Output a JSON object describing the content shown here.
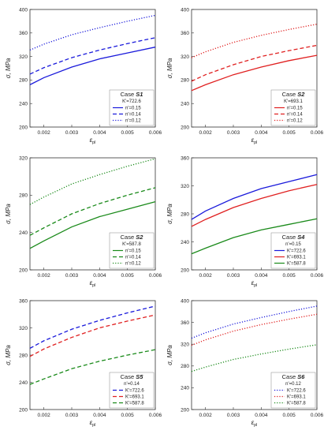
{
  "colors": {
    "blue": "#1a1adb",
    "red": "#e02020",
    "green": "#1a8a1a"
  },
  "chart_data": [
    {
      "type": "line",
      "legend_title": "Case",
      "legend_case": "S1",
      "legend_sub": "K'=722.6",
      "xlabel": "ε",
      "xlabel_sub": "pl",
      "ylabel": "σ, MPa",
      "xlim": [
        0.0015,
        0.006
      ],
      "ylim": [
        200,
        400
      ],
      "xticks": [
        "0.002",
        "0.003",
        "0.004",
        "0.005",
        "0.006"
      ],
      "yticks": [
        "200",
        "240",
        "280",
        "320",
        "360",
        "400"
      ],
      "legend_position": "bottom-right",
      "series": [
        {
          "name": "n'=0.15",
          "color": "#1a1adb",
          "dash": "solid",
          "x": [
            0.0015,
            0.002,
            0.003,
            0.004,
            0.005,
            0.006
          ],
          "y": [
            272,
            284,
            302,
            316,
            326,
            336
          ]
        },
        {
          "name": "n'=0.14",
          "color": "#1a1adb",
          "dash": "dashed",
          "x": [
            0.0015,
            0.002,
            0.003,
            0.004,
            0.005,
            0.006
          ],
          "y": [
            290,
            301,
            318,
            331,
            342,
            352
          ]
        },
        {
          "name": "n'=0.12",
          "color": "#1a1adb",
          "dash": "dotted",
          "x": [
            0.0015,
            0.002,
            0.003,
            0.004,
            0.005,
            0.006
          ],
          "y": [
            331,
            341,
            357,
            369,
            380,
            390
          ]
        }
      ]
    },
    {
      "type": "line",
      "legend_title": "Case",
      "legend_case": "S2",
      "legend_sub": "K'=693.1",
      "xlabel": "ε",
      "xlabel_sub": "pl",
      "ylabel": "σ, MPa",
      "xlim": [
        0.0015,
        0.006
      ],
      "ylim": [
        200,
        400
      ],
      "xticks": [
        "0.002",
        "0.003",
        "0.004",
        "0.005",
        "0.006"
      ],
      "yticks": [
        "200",
        "240",
        "280",
        "320",
        "360",
        "400"
      ],
      "legend_position": "bottom-right",
      "series": [
        {
          "name": "n'=0.15",
          "color": "#e02020",
          "dash": "solid",
          "x": [
            0.0015,
            0.002,
            0.003,
            0.004,
            0.005,
            0.006
          ],
          "y": [
            262,
            272,
            289,
            302,
            313,
            322
          ]
        },
        {
          "name": "n'=0.14",
          "color": "#e02020",
          "dash": "dashed",
          "x": [
            0.0015,
            0.002,
            0.003,
            0.004,
            0.005,
            0.006
          ],
          "y": [
            278,
            289,
            306,
            320,
            330,
            339
          ]
        },
        {
          "name": "n'=0.12",
          "color": "#e02020",
          "dash": "dotted",
          "x": [
            0.0015,
            0.002,
            0.003,
            0.004,
            0.005,
            0.006
          ],
          "y": [
            318,
            328,
            344,
            356,
            366,
            375
          ]
        }
      ]
    },
    {
      "type": "line",
      "legend_title": "Case",
      "legend_case": "S2",
      "legend_sub": "K'=587.8",
      "xlabel": "ε",
      "xlabel_sub": "pl",
      "ylabel": "σ, MPa",
      "xlim": [
        0.0015,
        0.006
      ],
      "ylim": [
        200,
        320
      ],
      "xticks": [
        "0.002",
        "0.003",
        "0.004",
        "0.005",
        "0.006"
      ],
      "yticks": [
        "200",
        "240",
        "280",
        "320"
      ],
      "legend_position": "bottom-right",
      "series": [
        {
          "name": "n'=0.15",
          "color": "#1a8a1a",
          "dash": "solid",
          "x": [
            0.0015,
            0.002,
            0.003,
            0.004,
            0.005,
            0.006
          ],
          "y": [
            223,
            231,
            246,
            257,
            265,
            273
          ]
        },
        {
          "name": "n'=0.14",
          "color": "#1a8a1a",
          "dash": "dashed",
          "x": [
            0.0015,
            0.002,
            0.003,
            0.004,
            0.005,
            0.006
          ],
          "y": [
            237,
            245,
            260,
            271,
            280,
            288
          ]
        },
        {
          "name": "n'=0.12",
          "color": "#1a8a1a",
          "dash": "dotted",
          "x": [
            0.0015,
            0.002,
            0.003,
            0.004,
            0.005,
            0.006
          ],
          "y": [
            270,
            278,
            292,
            302,
            311,
            319
          ]
        }
      ]
    },
    {
      "type": "line",
      "legend_title": "Case",
      "legend_case": "S4",
      "legend_sub": "n'=0.15",
      "xlabel": "ε",
      "xlabel_sub": "pl",
      "ylabel": "σ, MPa",
      "xlim": [
        0.0015,
        0.006
      ],
      "ylim": [
        200,
        360
      ],
      "xticks": [
        "0.002",
        "0.003",
        "0.004",
        "0.005",
        "0.006"
      ],
      "yticks": [
        "200",
        "240",
        "280",
        "320",
        "360"
      ],
      "legend_position": "bottom-right",
      "series": [
        {
          "name": "K'=722.6",
          "color": "#1a1adb",
          "dash": "solid",
          "x": [
            0.0015,
            0.002,
            0.003,
            0.004,
            0.005,
            0.006
          ],
          "y": [
            272,
            284,
            302,
            316,
            326,
            336
          ]
        },
        {
          "name": "K'=693.1",
          "color": "#e02020",
          "dash": "solid",
          "x": [
            0.0015,
            0.002,
            0.003,
            0.004,
            0.005,
            0.006
          ],
          "y": [
            262,
            272,
            289,
            302,
            313,
            322
          ]
        },
        {
          "name": "K'=587.8",
          "color": "#1a8a1a",
          "dash": "solid",
          "x": [
            0.0015,
            0.002,
            0.003,
            0.004,
            0.005,
            0.006
          ],
          "y": [
            223,
            231,
            246,
            257,
            265,
            273
          ]
        }
      ]
    },
    {
      "type": "line",
      "legend_title": "Case",
      "legend_case": "S5",
      "legend_sub": "n'=0.14",
      "xlabel": "ε",
      "xlabel_sub": "pl",
      "ylabel": "σ, MPa",
      "xlim": [
        0.0015,
        0.006
      ],
      "ylim": [
        200,
        360
      ],
      "xticks": [
        "0.002",
        "0.003",
        "0.004",
        "0.005",
        "0.006"
      ],
      "yticks": [
        "200",
        "240",
        "280",
        "320",
        "360"
      ],
      "legend_position": "bottom-right",
      "series": [
        {
          "name": "K'=722.6",
          "color": "#1a1adb",
          "dash": "dashed",
          "x": [
            0.0015,
            0.002,
            0.003,
            0.004,
            0.005,
            0.006
          ],
          "y": [
            290,
            301,
            318,
            331,
            342,
            352
          ]
        },
        {
          "name": "K'=693.1",
          "color": "#e02020",
          "dash": "dashed",
          "x": [
            0.0015,
            0.002,
            0.003,
            0.004,
            0.005,
            0.006
          ],
          "y": [
            278,
            289,
            306,
            320,
            330,
            339
          ]
        },
        {
          "name": "K'=587.8",
          "color": "#1a8a1a",
          "dash": "dashed",
          "x": [
            0.0015,
            0.002,
            0.003,
            0.004,
            0.005,
            0.006
          ],
          "y": [
            237,
            245,
            260,
            271,
            280,
            288
          ]
        }
      ]
    },
    {
      "type": "line",
      "legend_title": "Case",
      "legend_case": "S6",
      "legend_sub": "n'=0.12",
      "xlabel": "ε",
      "xlabel_sub": "pl",
      "ylabel": "σ, MPa",
      "xlim": [
        0.0015,
        0.006
      ],
      "ylim": [
        200,
        400
      ],
      "xticks": [
        "0.002",
        "0.003",
        "0.004",
        "0.005",
        "0.006"
      ],
      "yticks": [
        "200",
        "240",
        "280",
        "320",
        "360",
        "400"
      ],
      "legend_position": "bottom-right",
      "series": [
        {
          "name": "K'=722.6",
          "color": "#1a1adb",
          "dash": "dotted",
          "x": [
            0.0015,
            0.002,
            0.003,
            0.004,
            0.005,
            0.006
          ],
          "y": [
            331,
            341,
            357,
            369,
            380,
            390
          ]
        },
        {
          "name": "K'=693.1",
          "color": "#e02020",
          "dash": "dotted",
          "x": [
            0.0015,
            0.002,
            0.003,
            0.004,
            0.005,
            0.006
          ],
          "y": [
            318,
            328,
            344,
            356,
            366,
            375
          ]
        },
        {
          "name": "K'=587.8",
          "color": "#1a8a1a",
          "dash": "dotted",
          "x": [
            0.0015,
            0.002,
            0.003,
            0.004,
            0.005,
            0.006
          ],
          "y": [
            270,
            278,
            292,
            302,
            311,
            319
          ]
        }
      ]
    }
  ]
}
